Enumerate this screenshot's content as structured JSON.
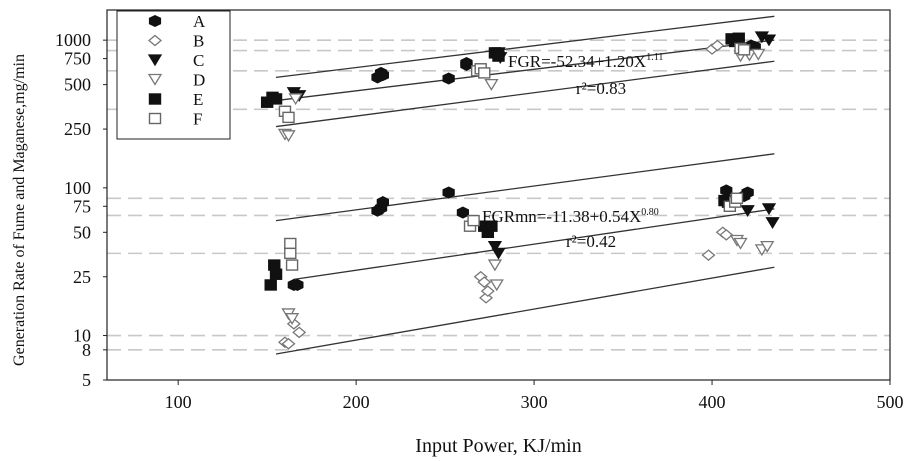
{
  "chart_data": {
    "type": "scatter",
    "xlabel": "Input Power, KJ/min",
    "ylabel": "Generation Rate of Fume and Maganese,mg/min",
    "xlim": [
      60,
      500
    ],
    "ylim": [
      5,
      1600
    ],
    "yscale": "log",
    "x_ticks": [
      100,
      200,
      300,
      400,
      500
    ],
    "y_ticks": [
      5,
      8,
      10,
      25,
      50,
      75,
      100,
      250,
      500,
      750,
      1000
    ],
    "grid": "dashed horizontal bands",
    "legend_position": "top-left",
    "series": [
      {
        "name": "A",
        "marker": "hexagon-filled",
        "points": [
          [
            165,
            22
          ],
          [
            167,
            22
          ],
          [
            212,
            70
          ],
          [
            214,
            73
          ],
          [
            215,
            80
          ],
          [
            212,
            560
          ],
          [
            214,
            600
          ],
          [
            215,
            580
          ],
          [
            252,
            93
          ],
          [
            252,
            550
          ],
          [
            260,
            68
          ],
          [
            262,
            700
          ],
          [
            262,
            680
          ],
          [
            408,
            96
          ],
          [
            418,
            88
          ],
          [
            420,
            93
          ],
          [
            422,
            920
          ],
          [
            424,
            900
          ]
        ]
      },
      {
        "name": "B",
        "marker": "diamond-open",
        "points": [
          [
            160,
            9
          ],
          [
            162,
            8.8
          ],
          [
            165,
            12
          ],
          [
            168,
            10.5
          ],
          [
            270,
            25
          ],
          [
            272,
            23
          ],
          [
            273,
            18
          ],
          [
            274,
            20
          ],
          [
            398,
            35
          ],
          [
            400,
            870
          ],
          [
            403,
            920
          ],
          [
            406,
            50
          ],
          [
            408,
            48
          ],
          [
            415,
            950
          ]
        ]
      },
      {
        "name": "C",
        "marker": "triangle-down-filled",
        "points": [
          [
            165,
            440
          ],
          [
            168,
            420
          ],
          [
            278,
            40
          ],
          [
            280,
            36
          ],
          [
            280,
            820
          ],
          [
            281,
            760
          ],
          [
            420,
            70
          ],
          [
            428,
            1050
          ],
          [
            432,
            1000
          ],
          [
            432,
            72
          ],
          [
            434,
            58
          ]
        ]
      },
      {
        "name": "D",
        "marker": "triangle-down-open",
        "points": [
          [
            160,
            230
          ],
          [
            162,
            225
          ],
          [
            162,
            14
          ],
          [
            164,
            13
          ],
          [
            166,
            400
          ],
          [
            276,
            500
          ],
          [
            278,
            30
          ],
          [
            279,
            22
          ],
          [
            414,
            44
          ],
          [
            416,
            42
          ],
          [
            416,
            780
          ],
          [
            421,
            790
          ],
          [
            426,
            800
          ],
          [
            428,
            38
          ],
          [
            431,
            40
          ]
        ]
      },
      {
        "name": "E",
        "marker": "square-filled",
        "points": [
          [
            150,
            380
          ],
          [
            153,
            410
          ],
          [
            155,
            400
          ],
          [
            152,
            22
          ],
          [
            155,
            26
          ],
          [
            154,
            30
          ],
          [
            272,
            55
          ],
          [
            274,
            50
          ],
          [
            276,
            55
          ],
          [
            278,
            820
          ],
          [
            280,
            780
          ],
          [
            407,
            82
          ],
          [
            409,
            80
          ],
          [
            411,
            1020
          ],
          [
            413,
            980
          ],
          [
            415,
            1030
          ]
        ]
      },
      {
        "name": "F",
        "marker": "square-open",
        "points": [
          [
            160,
            330
          ],
          [
            162,
            300
          ],
          [
            163,
            42
          ],
          [
            163,
            36
          ],
          [
            164,
            30
          ],
          [
            264,
            55
          ],
          [
            266,
            60
          ],
          [
            268,
            620
          ],
          [
            270,
            640
          ],
          [
            272,
            600
          ],
          [
            410,
            75
          ],
          [
            413,
            80
          ],
          [
            414,
            85
          ],
          [
            416,
            880
          ],
          [
            418,
            860
          ]
        ]
      }
    ],
    "fit_lines": [
      {
        "label": "FGR=-52.34+1.20X",
        "exponent": "1.11",
        "r2": "r²=0.83",
        "center": [
          [
            155,
            390
          ],
          [
            435,
            1000
          ]
        ],
        "upper": [
          [
            155,
            560
          ],
          [
            435,
            1450
          ]
        ],
        "lower": [
          [
            155,
            260
          ],
          [
            435,
            720
          ]
        ]
      },
      {
        "label": "FGRmn=-11.38+0.54X",
        "exponent": "0.80",
        "r2": "r²=0.42",
        "center": [
          [
            165,
            24
          ],
          [
            435,
            72
          ]
        ],
        "upper": [
          [
            155,
            60
          ],
          [
            435,
            170
          ]
        ],
        "lower": [
          [
            155,
            7.5
          ],
          [
            435,
            29
          ]
        ]
      }
    ],
    "annotations": [
      "FGR=-52.34+1.20X1.11",
      "r²=0.83",
      "FGRmn=-11.38+0.54X0.80",
      "r²=0.42"
    ]
  }
}
